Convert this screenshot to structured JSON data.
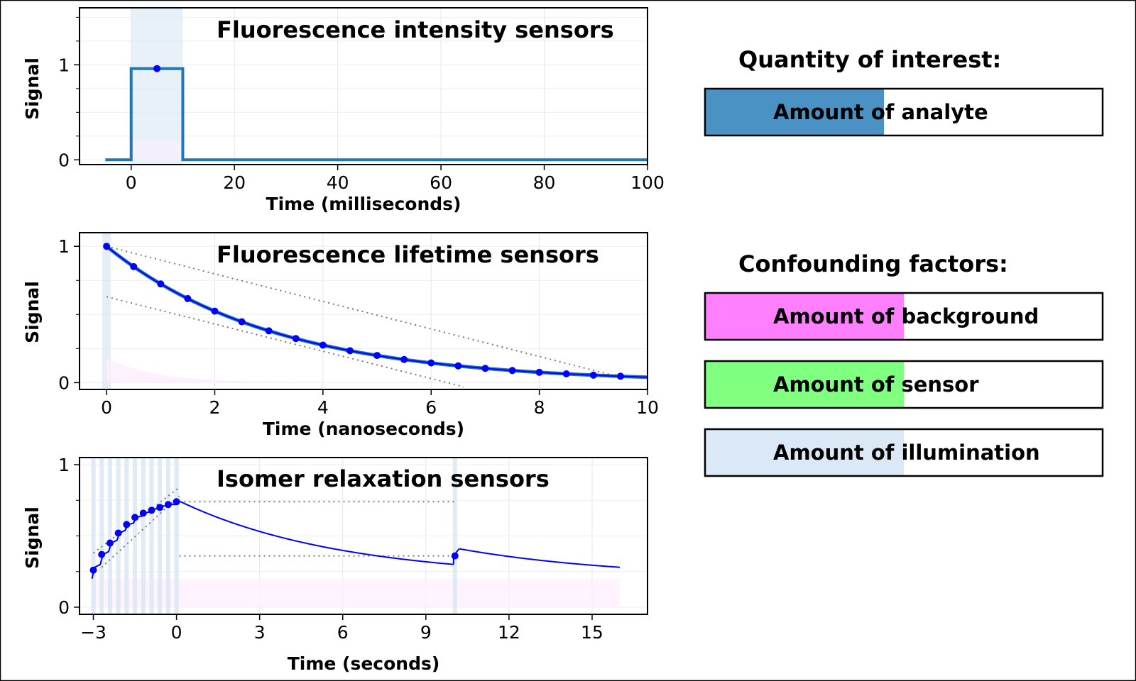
{
  "chart_data": [
    {
      "type": "line",
      "title": "Fluorescence intensity sensors",
      "xlabel": "Time (milliseconds)",
      "ylabel": "Signal",
      "xlim": [
        -10,
        100
      ],
      "ylim": [
        -0.05,
        1.6
      ],
      "xticks": [
        0,
        20,
        40,
        60,
        80,
        100
      ],
      "yticks": [
        0,
        1
      ],
      "y_minor_ticks": [
        0.25,
        0.5,
        0.75,
        1.25,
        1.5
      ],
      "grid": true,
      "illumination_band": [
        0,
        10
      ],
      "series": [
        {
          "style": "step",
          "x": [
            -5,
            0,
            0,
            10,
            10,
            100
          ],
          "y": [
            0,
            0,
            0.96,
            0.96,
            0,
            0
          ]
        },
        {
          "style": "points",
          "x": [
            5
          ],
          "y": [
            0.96
          ]
        }
      ]
    },
    {
      "type": "line",
      "title": "Fluorescence lifetime sensors",
      "xlabel": "Time (nanoseconds)",
      "ylabel": "Signal",
      "xlim": [
        -0.5,
        10
      ],
      "ylim": [
        -0.05,
        1.1
      ],
      "xticks": [
        0,
        2,
        4,
        6,
        8,
        10
      ],
      "xtick_labels": [
        "0",
        "2",
        "4",
        "6",
        "8",
        "10"
      ],
      "yticks": [
        0,
        1
      ],
      "y_minor_ticks": [
        0.25,
        0.5,
        0.75
      ],
      "grid": true,
      "illumination_band": [
        -0.08,
        0.08
      ],
      "decay_tau": 3.1,
      "background_tau": 0.9,
      "background_amplitude": 0.18,
      "sample_x": [
        0,
        0.5,
        1,
        1.5,
        2,
        2.5,
        3,
        3.5,
        4,
        4.5,
        5,
        5.5,
        6,
        6.5,
        7,
        7.5,
        8,
        8.5,
        9,
        9.5
      ],
      "tangent_lines": [
        {
          "x": [
            0,
            9.5
          ],
          "y": [
            1.0,
            0.04
          ]
        },
        {
          "x": [
            0,
            6.6
          ],
          "y": [
            0.63,
            -0.03
          ]
        }
      ]
    },
    {
      "type": "line",
      "title": "Isomer relaxation sensors",
      "xlabel": "Time (seconds)",
      "ylabel": "Signal",
      "xlim": [
        -3.5,
        17
      ],
      "ylim": [
        -0.05,
        1.05
      ],
      "xticks": [
        -3,
        0,
        3,
        6,
        9,
        12,
        15
      ],
      "xtick_labels": [
        "−3",
        "0",
        "3",
        "6",
        "9",
        "12",
        "15"
      ],
      "yticks": [
        0,
        1
      ],
      "y_minor_ticks": [
        0.25,
        0.5,
        0.75
      ],
      "grid": true,
      "pulse_times": [
        -3,
        -2.7,
        -2.4,
        -2.1,
        -1.8,
        -1.5,
        -1.2,
        -0.9,
        -0.6,
        -0.3,
        0,
        10.05
      ],
      "pulse_width": 0.16,
      "background_level": 0.2,
      "background_xrange": [
        -3.05,
        16
      ],
      "sample_points": {
        "x": [
          -3.0,
          -2.7,
          -2.4,
          -2.1,
          -1.8,
          -1.5,
          -1.2,
          -0.9,
          -0.6,
          -0.3,
          0.0,
          10.05
        ],
        "y": [
          0.26,
          0.37,
          0.45,
          0.52,
          0.58,
          0.63,
          0.66,
          0.68,
          0.7,
          0.72,
          0.74,
          0.36
        ]
      },
      "curve_segments": [
        {
          "x": [
            -3.05,
            -2.95,
            -2.75,
            -2.65,
            -2.45,
            -2.35,
            -2.15,
            -2.05,
            -1.85,
            -1.75,
            -1.55,
            -1.45,
            -1.25,
            -1.15,
            -0.95,
            -0.85,
            -0.65,
            -0.55,
            -0.35,
            -0.25,
            -0.05,
            0.05,
            0.15
          ],
          "y": [
            0.2,
            0.28,
            0.3,
            0.37,
            0.39,
            0.45,
            0.47,
            0.52,
            0.54,
            0.58,
            0.59,
            0.63,
            0.64,
            0.66,
            0.67,
            0.69,
            0.69,
            0.71,
            0.71,
            0.72,
            0.72,
            0.74,
            0.74
          ]
        },
        {
          "decay_from": 0.15,
          "decay_to": 10.0,
          "start_y": 0.74,
          "end_y": 0.3
        },
        {
          "x": [
            10.0,
            10.0,
            10.2
          ],
          "y": [
            0.3,
            0.36,
            0.41
          ]
        },
        {
          "decay_from": 10.2,
          "decay_to": 16.0,
          "start_y": 0.41,
          "end_y": 0.28
        }
      ],
      "dotted_lines": [
        {
          "x": [
            -3.0,
            0.1
          ],
          "y": [
            0.38,
            0.84
          ]
        },
        {
          "x": [
            -2.7,
            0.1
          ],
          "y": [
            0.28,
            0.78
          ]
        },
        {
          "x": [
            0.1,
            10.1
          ],
          "y": [
            0.74,
            0.74
          ]
        },
        {
          "x": [
            0.1,
            10.1
          ],
          "y": [
            0.36,
            0.36
          ]
        }
      ]
    }
  ],
  "colors": {
    "intensity_line": "#1f77b4",
    "data_blue": "#0000ff",
    "illumination": "#dbe8f5",
    "analyte": "#4a91c4",
    "background": "#ff80ff",
    "sensor": "#80ff80",
    "illumination_bar": "#dbe8f5",
    "background_fill": "#fdeefd"
  },
  "right_panel": {
    "quantity_heading": "Quantity of interest:",
    "confounding_heading": "Confounding factors:",
    "bars": [
      {
        "label": "Amount of analyte",
        "fill_fraction": 0.45,
        "color": "#4a91c4"
      },
      {
        "label": "Amount of background",
        "fill_fraction": 0.5,
        "color": "#ff80ff"
      },
      {
        "label": "Amount of sensor",
        "fill_fraction": 0.5,
        "color": "#80ff80"
      },
      {
        "label": "Amount of illumination",
        "fill_fraction": 0.5,
        "color": "#dbe8f5"
      }
    ]
  }
}
